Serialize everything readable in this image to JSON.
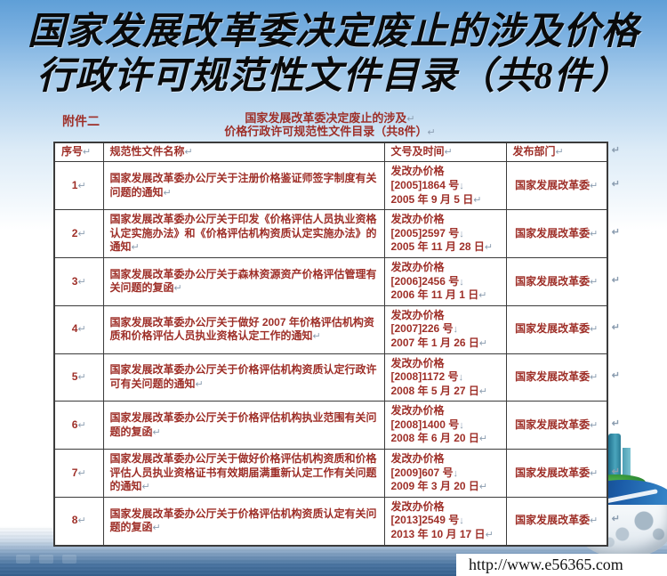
{
  "slide": {
    "title_line1": "国家发展改革委决定废止的涉及价格",
    "title_line2": "行政许可规范性文件目录（共8件）"
  },
  "document": {
    "attachment_label": "附件二",
    "header_line1": "国家发展改革委决定废止的涉及",
    "header_line2": "价格行政许可规范性文件目录（共8件）",
    "table": {
      "columns": [
        "序号",
        "规范性文件名称",
        "文号及时间",
        "发布部门"
      ],
      "rows": [
        {
          "no": "1",
          "name": "国家发展改革委办公厅关于注册价格鉴证师签字制度有关问题的通知",
          "doc_prefix": "发改办价格",
          "doc_no": "[2005]1864 号",
          "date": "2005 年 9 月 5 日",
          "dept": "国家发展改革委"
        },
        {
          "no": "2",
          "name": "国家发展改革委办公厅关于印发《价格评估人员执业资格认定实施办法》和《价格评估机构资质认定实施办法》的通知",
          "doc_prefix": "发改办价格",
          "doc_no": "[2005]2597 号",
          "date": "2005 年 11 月 28 日",
          "dept": "国家发展改革委"
        },
        {
          "no": "3",
          "name": "国家发展改革委办公厅关于森林资源资产价格评估管理有关问题的复函",
          "doc_prefix": "发改办价格",
          "doc_no": "[2006]2456 号",
          "date": "2006 年 11 月 1 日",
          "dept": "国家发展改革委"
        },
        {
          "no": "4",
          "name": "国家发展改革委办公厅关于做好 2007 年价格评估机构资质和价格评估人员执业资格认定工作的通知",
          "doc_prefix": "发改办价格",
          "doc_no": "[2007]226 号",
          "date": "2007 年 1 月 26 日",
          "dept": "国家发展改革委"
        },
        {
          "no": "5",
          "name": "国家发展改革委办公厅关于价格评估机构资质认定行政许可有关问题的通知",
          "doc_prefix": "发改办价格",
          "doc_no": "[2008]1172 号",
          "date": "2008 年 5 月 27 日",
          "dept": "国家发展改革委"
        },
        {
          "no": "6",
          "name": "国家发展改革委办公厅关于价格评估机构执业范围有关问题的复函",
          "doc_prefix": "发改办价格",
          "doc_no": "[2008]1400 号",
          "date": "2008 年 6 月 20 日",
          "dept": "国家发展改革委"
        },
        {
          "no": "7",
          "name": "国家发展改革委办公厅关于做好价格评估机构资质和价格评估人员执业资格证书有效期届满重新认定工作有关问题的通知",
          "doc_prefix": "发改办价格",
          "doc_no": "[2009]607 号",
          "date": "2009 年 3 月 20 日",
          "dept": "国家发展改革委"
        },
        {
          "no": "8",
          "name": "国家发展改革委办公厅关于价格评估机构资质认定有关问题的复函",
          "doc_prefix": "发改办价格",
          "doc_no": "[2013]2549 号",
          "date": "2013 年 10 月 17 日",
          "dept": "国家发展改革委"
        }
      ]
    }
  },
  "footer": {
    "url": "http://www.e56365.com"
  },
  "marks": {
    "paragraph": "↵",
    "linebreak": "↓"
  },
  "colors": {
    "doc_text": "#9e2f28",
    "mark_gray": "#8b9db0",
    "top_blue": "#5f9fd7",
    "sea_blue": "#35608e"
  }
}
